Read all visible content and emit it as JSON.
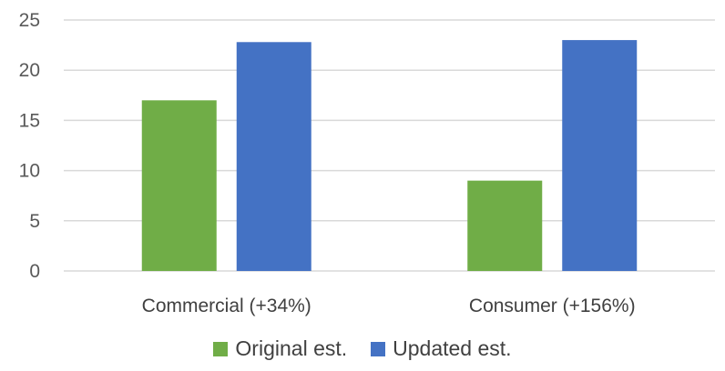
{
  "chart_data": {
    "type": "bar",
    "title": "",
    "xlabel": "",
    "ylabel": "",
    "categories": [
      "Commercial (+34%)",
      "Consumer (+156%)"
    ],
    "series": [
      {
        "name": "Original est.",
        "color": "#70ad47",
        "values": [
          17,
          9
        ]
      },
      {
        "name": "Updated est.",
        "color": "#4472c4",
        "values": [
          22.8,
          23
        ]
      }
    ],
    "ylim": [
      0,
      25
    ],
    "yticks": [
      "0",
      "5",
      "10",
      "15",
      "20",
      "25"
    ],
    "grid": true,
    "legend_position": "bottom"
  }
}
